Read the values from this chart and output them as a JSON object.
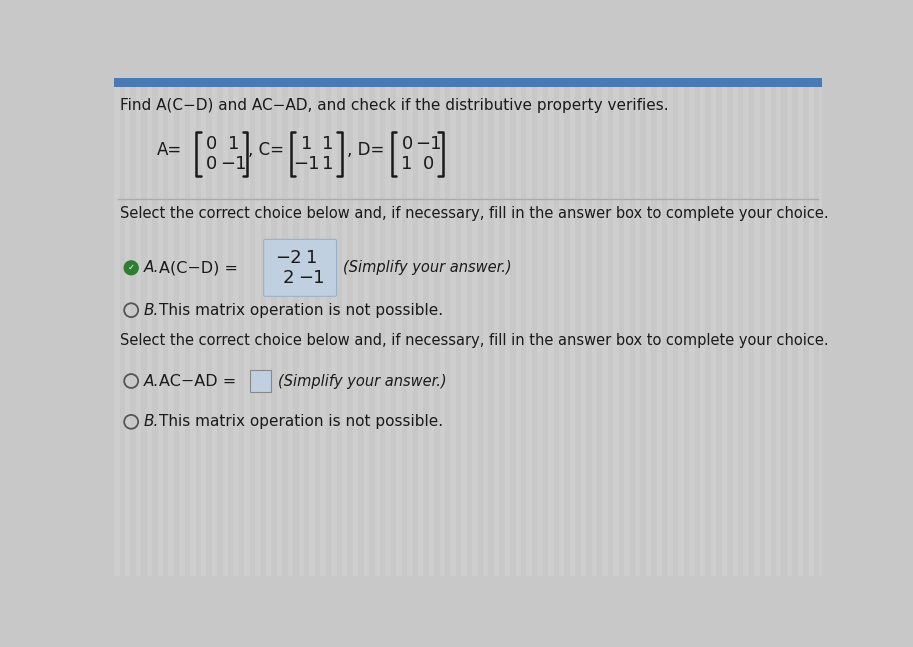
{
  "bg_color": "#c8c8c8",
  "stripe_color": "#d4d4d4",
  "title_text": "Find A(C−D) and AC−AD, and check if the distributive property verifies.",
  "select1_text": "Select the correct choice below and, if necessary, fill in the answer box to complete your choice.",
  "select2_text": "Select the correct choice below and, if necessary, fill in the answer box to complete your choice.",
  "option_A1_prefix": "A(C−D) =",
  "matrix1": [
    [
      "−2",
      "1"
    ],
    [
      "2",
      "−1"
    ]
  ],
  "option_A1_suffix": "(Simplify your answer.)",
  "option_B1_text": "This matrix operation is not possible.",
  "option_A2_prefix": "AC−AD =",
  "option_A2_suffix": "(Simplify your answer.)",
  "option_B2_text": "This matrix operation is not possible.",
  "mat_A": [
    [
      "0",
      "1"
    ],
    [
      "0",
      "−1"
    ]
  ],
  "mat_C": [
    [
      "1",
      "1"
    ],
    [
      "−1",
      "1"
    ]
  ],
  "mat_D": [
    [
      "0",
      "−1"
    ],
    [
      "1",
      "0"
    ]
  ],
  "font_color": "#1a1a1a",
  "box_color": "#c0d0e0",
  "radio_green": "#2e7d32",
  "radio_outline": "#555555",
  "divider_color": "#aaaaaa"
}
